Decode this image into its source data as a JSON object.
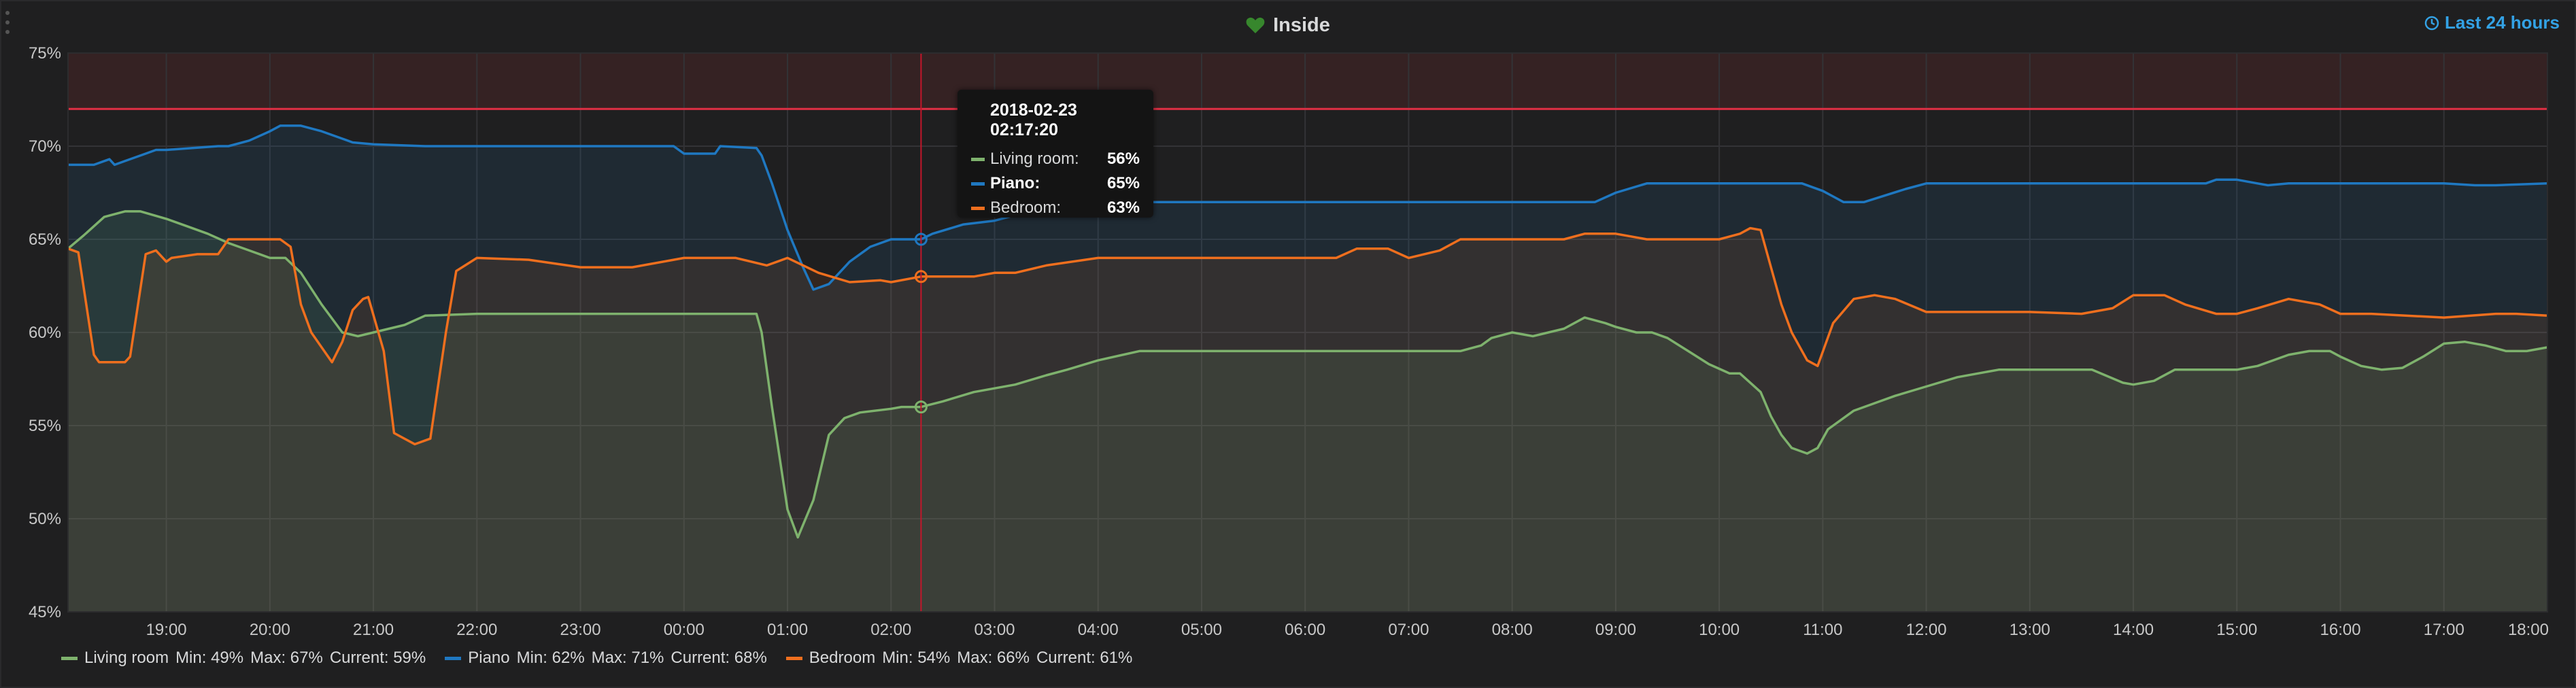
{
  "panel": {
    "title": "Inside",
    "time_range": "Last 24 hours",
    "icons": {
      "title": "heart-icon",
      "time_range": "clock-icon",
      "menu": "drag-handle-icon"
    },
    "colors": {
      "background": "#1f1f20",
      "threshold": "#e02f44",
      "threshold_fill": "#3a2324",
      "grid": "#333336",
      "cursor": "#c4162a",
      "accent": "#33a2e5",
      "heart": "#37872d"
    }
  },
  "tooltip": {
    "time": "2018-02-23 02:17:20",
    "rows": [
      {
        "name": "Living room:",
        "value": "56%",
        "color": "#7eb26d",
        "active": false
      },
      {
        "name": "Piano:",
        "value": "65%",
        "color": "#1f78c1",
        "active": true
      },
      {
        "name": "Bedroom:",
        "value": "63%",
        "color": "#ef6f1e",
        "active": false
      }
    ]
  },
  "legend": [
    {
      "name": "Living room",
      "color": "#7eb26d",
      "min": "Min: 49%",
      "max": "Max: 67%",
      "current": "Current: 59%"
    },
    {
      "name": "Piano",
      "color": "#1f78c1",
      "min": "Min: 62%",
      "max": "Max: 71%",
      "current": "Current: 68%"
    },
    {
      "name": "Bedroom",
      "color": "#ef6f1e",
      "min": "Min: 54%",
      "max": "Max: 66%",
      "current": "Current: 61%"
    }
  ],
  "chart_data": {
    "type": "line",
    "title": "Inside",
    "ylim": [
      45,
      75
    ],
    "y_ticks": [
      "45%",
      "50%",
      "55%",
      "60%",
      "65%",
      "70%",
      "75%"
    ],
    "y_tick_values": [
      45,
      50,
      55,
      60,
      65,
      70,
      75
    ],
    "xlim": [
      18.05,
      42.0
    ],
    "x_ticks": [
      "19:00",
      "20:00",
      "21:00",
      "22:00",
      "23:00",
      "00:00",
      "01:00",
      "02:00",
      "03:00",
      "04:00",
      "05:00",
      "06:00",
      "07:00",
      "08:00",
      "09:00",
      "10:00",
      "11:00",
      "12:00",
      "13:00",
      "14:00",
      "15:00",
      "16:00",
      "17:00",
      "18:00"
    ],
    "x_tick_values": [
      19,
      20,
      21,
      22,
      23,
      24,
      25,
      26,
      27,
      28,
      29,
      30,
      31,
      32,
      33,
      34,
      35,
      36,
      37,
      38,
      39,
      40,
      41,
      42
    ],
    "threshold": 72,
    "cursor_x": 26.29,
    "grid": true,
    "legend_position": "bottom",
    "series": [
      {
        "name": "Living room",
        "color": "#7eb26d",
        "x": [
          18.05,
          18.2,
          18.4,
          18.6,
          18.75,
          19.0,
          19.2,
          19.4,
          19.6,
          19.8,
          20.0,
          20.15,
          20.3,
          20.5,
          20.7,
          20.85,
          21.0,
          21.3,
          21.5,
          22.0,
          22.5,
          23.0,
          24.0,
          24.7,
          24.75,
          24.85,
          25.0,
          25.1,
          25.25,
          25.4,
          25.55,
          25.7,
          26.0,
          26.1,
          26.29,
          26.5,
          26.8,
          27.0,
          27.2,
          27.5,
          27.7,
          28.0,
          28.4,
          29.0,
          30.0,
          31.0,
          31.5,
          31.7,
          31.8,
          32.0,
          32.2,
          32.5,
          32.7,
          32.9,
          33.0,
          33.2,
          33.35,
          33.5,
          33.7,
          33.9,
          34.1,
          34.2,
          34.4,
          34.5,
          34.6,
          34.7,
          34.85,
          34.95,
          35.05,
          35.3,
          35.5,
          35.7,
          36.0,
          36.3,
          36.7,
          37.0,
          37.3,
          37.6,
          37.9,
          38.0,
          38.2,
          38.4,
          38.7,
          39.0,
          39.2,
          39.5,
          39.7,
          39.9,
          40.0,
          40.2,
          40.4,
          40.6,
          40.8,
          41.0,
          41.2,
          41.4,
          41.6,
          41.8,
          42.0
        ],
        "y": [
          64.5,
          65.2,
          66.2,
          66.5,
          66.5,
          66.1,
          65.7,
          65.3,
          64.8,
          64.4,
          64.0,
          64.0,
          63.2,
          61.5,
          60.0,
          59.8,
          60.0,
          60.4,
          60.9,
          61.0,
          61.0,
          61.0,
          61.0,
          61.0,
          60.0,
          56.0,
          50.5,
          49.0,
          51.0,
          54.5,
          55.4,
          55.7,
          55.9,
          56.0,
          56.0,
          56.3,
          56.8,
          57.0,
          57.2,
          57.7,
          58.0,
          58.5,
          59.0,
          59.0,
          59.0,
          59.0,
          59.0,
          59.3,
          59.7,
          60.0,
          59.8,
          60.2,
          60.8,
          60.5,
          60.3,
          60.0,
          60.0,
          59.7,
          59.0,
          58.3,
          57.8,
          57.8,
          56.8,
          55.5,
          54.5,
          53.8,
          53.5,
          53.8,
          54.8,
          55.8,
          56.2,
          56.6,
          57.1,
          57.6,
          58.0,
          58.0,
          58.0,
          58.0,
          57.3,
          57.2,
          57.4,
          58.0,
          58.0,
          58.0,
          58.2,
          58.8,
          59.0,
          59.0,
          58.7,
          58.2,
          58.0,
          58.1,
          58.7,
          59.4,
          59.5,
          59.3,
          59.0,
          59.0,
          59.2
        ]
      },
      {
        "name": "Piano",
        "color": "#1f78c1",
        "x": [
          18.05,
          18.3,
          18.45,
          18.5,
          18.6,
          18.8,
          18.9,
          19.0,
          19.5,
          19.6,
          19.8,
          20.0,
          20.1,
          20.3,
          20.5,
          20.7,
          20.8,
          21.0,
          21.5,
          22.0,
          23.0,
          23.9,
          24.0,
          24.2,
          24.3,
          24.35,
          24.7,
          24.75,
          24.85,
          25.0,
          25.15,
          25.25,
          25.4,
          25.6,
          25.8,
          26.0,
          26.29,
          26.4,
          26.7,
          27.0,
          27.2,
          27.5,
          27.7,
          28.0,
          30.0,
          32.0,
          32.8,
          33.0,
          33.3,
          34.0,
          34.8,
          35.0,
          35.1,
          35.2,
          35.4,
          35.8,
          36.0,
          37.0,
          38.0,
          38.7,
          38.8,
          39.0,
          39.2,
          39.3,
          39.5,
          40.0,
          41.0,
          41.3,
          41.5,
          42.0
        ],
        "y": [
          69.0,
          69.0,
          69.3,
          69.0,
          69.2,
          69.6,
          69.8,
          69.8,
          70.0,
          70.0,
          70.3,
          70.8,
          71.1,
          71.1,
          70.8,
          70.4,
          70.2,
          70.1,
          70.0,
          70.0,
          70.0,
          70.0,
          69.6,
          69.6,
          69.6,
          70.0,
          69.9,
          69.5,
          68.0,
          65.5,
          63.5,
          62.3,
          62.6,
          63.8,
          64.6,
          65.0,
          65.0,
          65.3,
          65.8,
          66.0,
          66.3,
          66.5,
          66.7,
          67.0,
          67.0,
          67.0,
          67.0,
          67.5,
          68.0,
          68.0,
          68.0,
          67.6,
          67.3,
          67.0,
          67.0,
          67.7,
          68.0,
          68.0,
          68.0,
          68.0,
          68.2,
          68.2,
          68.0,
          67.9,
          68.0,
          68.0,
          68.0,
          67.9,
          67.9,
          68.0
        ]
      },
      {
        "name": "Bedroom",
        "color": "#ef6f1e",
        "x": [
          18.05,
          18.15,
          18.3,
          18.35,
          18.6,
          18.65,
          18.8,
          18.9,
          19.0,
          19.05,
          19.3,
          19.4,
          19.5,
          19.6,
          20.1,
          20.2,
          20.3,
          20.4,
          20.6,
          20.6,
          20.7,
          20.8,
          20.9,
          20.95,
          21.1,
          21.2,
          21.4,
          21.55,
          21.7,
          21.8,
          22.0,
          22.5,
          23.0,
          23.5,
          24.0,
          24.5,
          24.8,
          25.0,
          25.3,
          25.6,
          25.9,
          26.0,
          26.29,
          26.8,
          27.0,
          27.2,
          27.5,
          28.0,
          28.4,
          30.0,
          30.3,
          30.5,
          30.8,
          31.0,
          31.3,
          31.5,
          32.0,
          32.5,
          32.7,
          33.0,
          33.3,
          33.5,
          33.7,
          34.0,
          34.2,
          34.3,
          34.4,
          34.5,
          34.6,
          34.7,
          34.85,
          34.95,
          35.1,
          35.3,
          35.5,
          35.7,
          36.0,
          36.5,
          37.0,
          37.5,
          37.8,
          38.0,
          38.3,
          38.5,
          38.8,
          39.0,
          39.2,
          39.5,
          39.8,
          40.0,
          40.3,
          41.0,
          41.5,
          41.7,
          42.0
        ],
        "y": [
          64.5,
          64.3,
          58.8,
          58.4,
          58.4,
          58.7,
          64.2,
          64.4,
          63.8,
          64.0,
          64.2,
          64.2,
          64.2,
          65.0,
          65.0,
          64.6,
          61.5,
          60.0,
          58.4,
          58.4,
          59.5,
          61.2,
          61.8,
          61.9,
          59.0,
          54.6,
          54.0,
          54.3,
          60.0,
          63.3,
          64.0,
          63.9,
          63.5,
          63.5,
          64.0,
          64.0,
          63.6,
          64.0,
          63.2,
          62.7,
          62.8,
          62.7,
          63.0,
          63.0,
          63.2,
          63.2,
          63.6,
          64.0,
          64.0,
          64.0,
          64.0,
          64.5,
          64.5,
          64.0,
          64.4,
          65.0,
          65.0,
          65.0,
          65.3,
          65.3,
          65.0,
          65.0,
          65.0,
          65.0,
          65.3,
          65.6,
          65.5,
          63.5,
          61.5,
          60.0,
          58.5,
          58.2,
          60.5,
          61.8,
          62.0,
          61.8,
          61.1,
          61.1,
          61.1,
          61.0,
          61.3,
          62.0,
          62.0,
          61.5,
          61.0,
          61.0,
          61.3,
          61.8,
          61.5,
          61.0,
          61.0,
          60.8,
          61.0,
          61.0,
          60.9
        ]
      }
    ]
  }
}
